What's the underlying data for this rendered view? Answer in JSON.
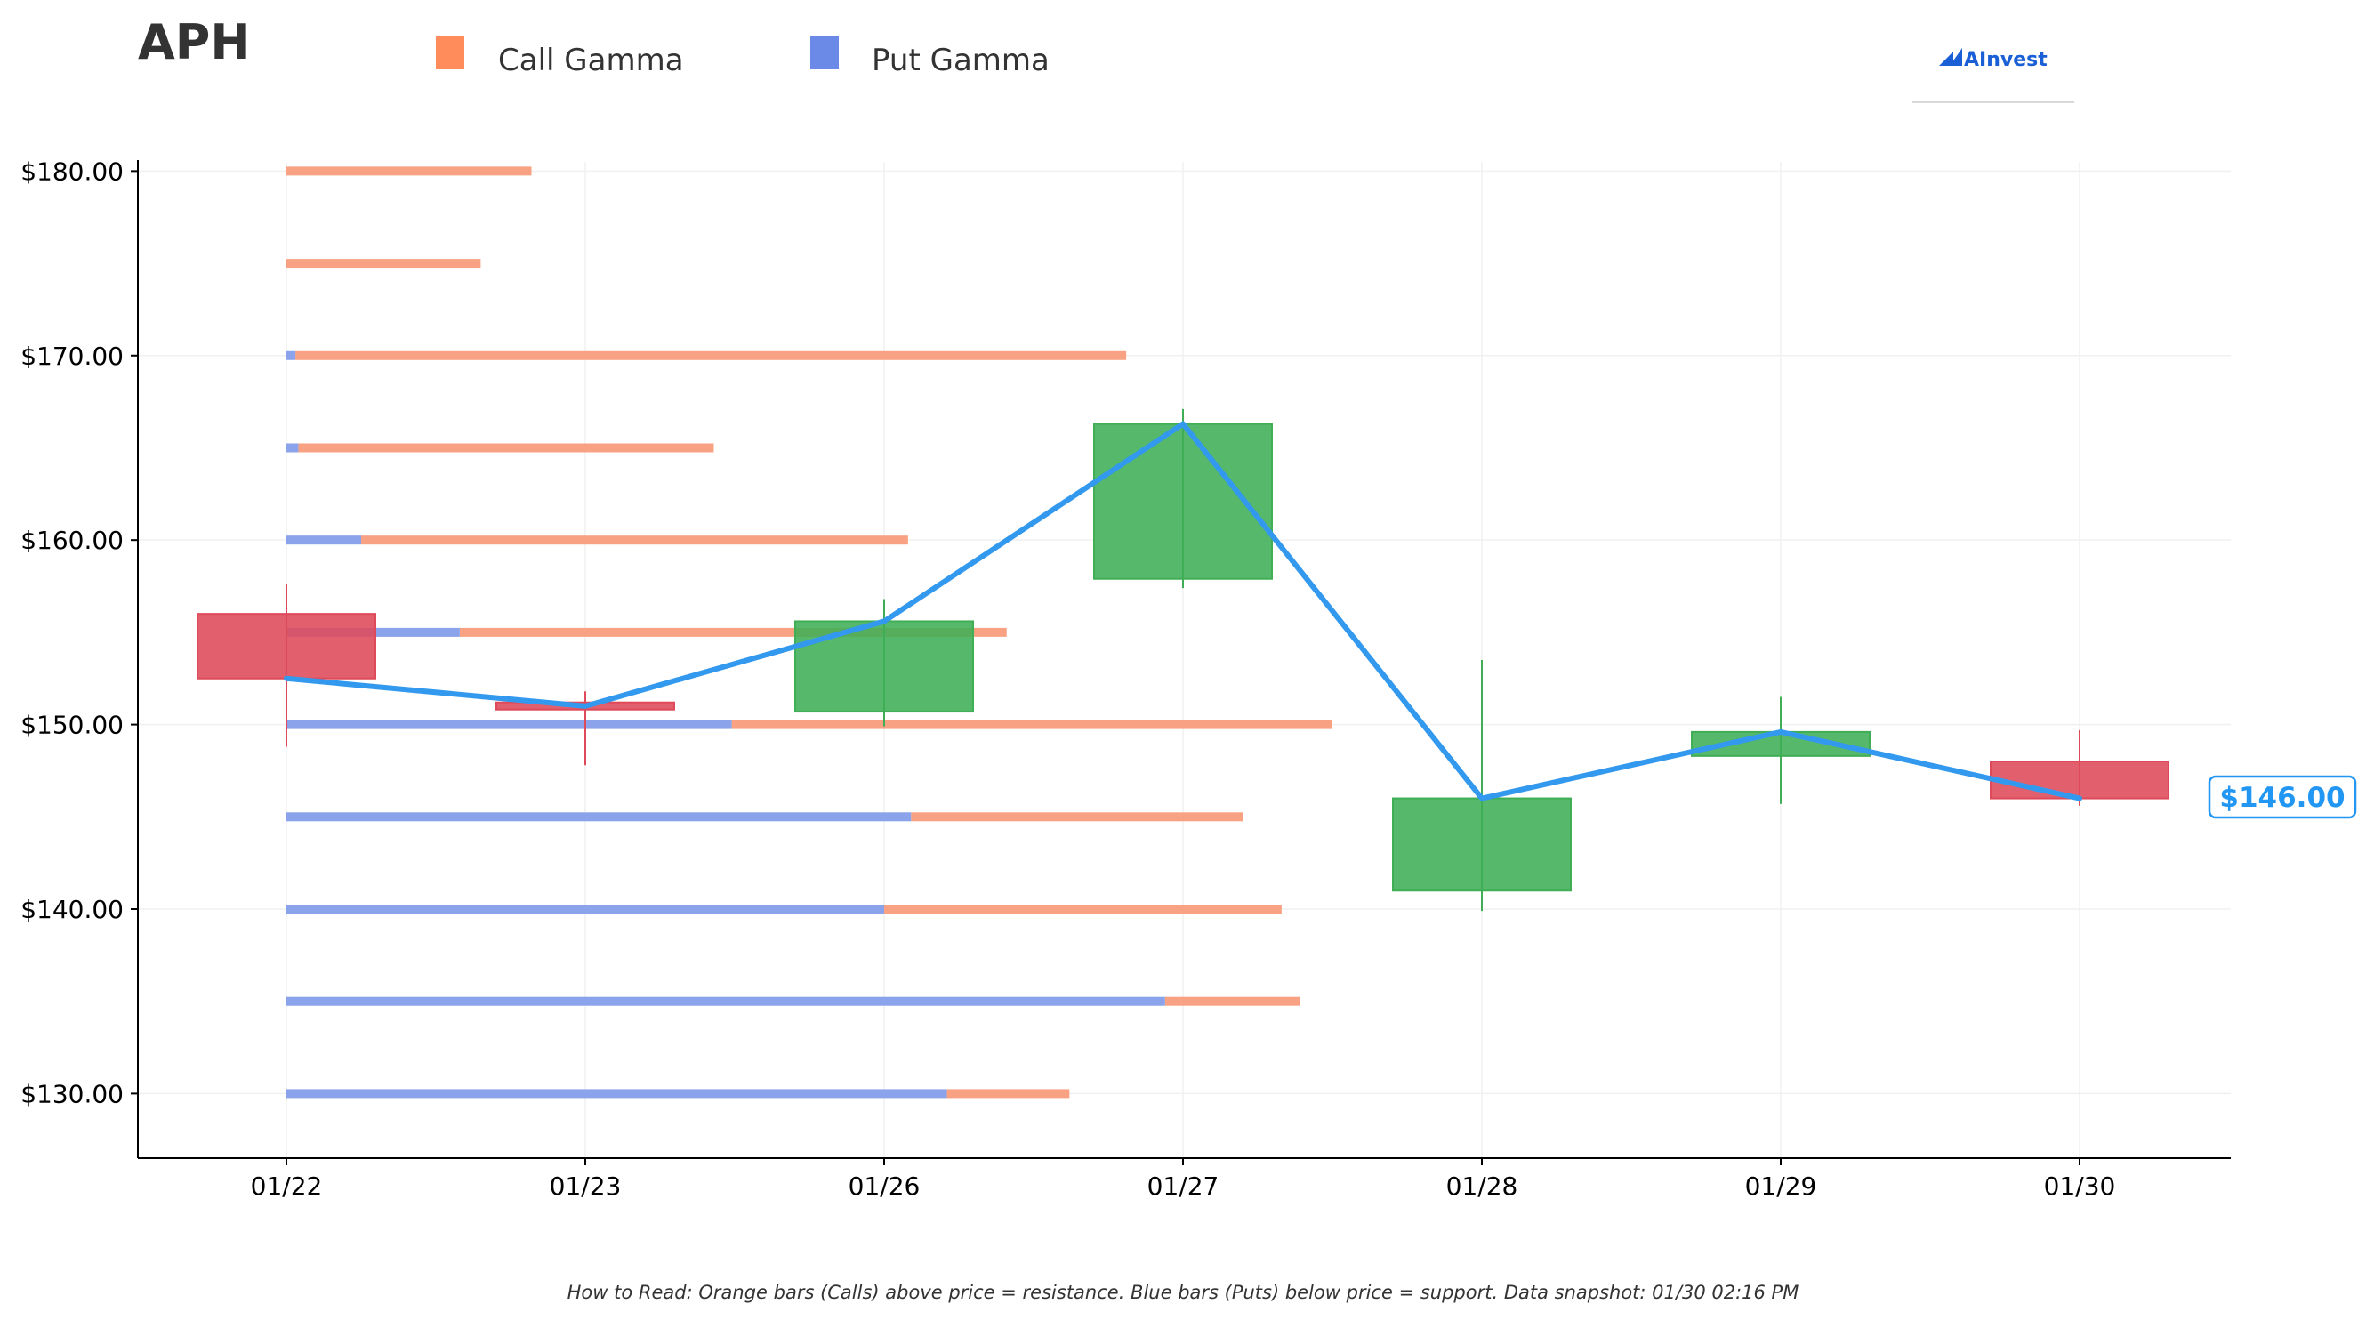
{
  "header": {
    "title": "APH",
    "legend": [
      {
        "label": "Call Gamma",
        "color": "#ff8c5a"
      },
      {
        "label": "Put Gamma",
        "color": "#6b89e6"
      }
    ],
    "logo": "AInvest"
  },
  "footer": {
    "note": "How to Read: Orange bars (Calls) above price = resistance. Blue bars (Puts) below price = support. Data snapshot: 01/30 02:16 PM"
  },
  "price_label": "$146.00",
  "colors": {
    "call": "#f8a283",
    "put": "#8aa3ea",
    "up": "#3fae55",
    "down": "#de4a5a",
    "line": "#3399ee"
  },
  "chart_data": {
    "type": "candlestick",
    "categories": [
      "01/22",
      "01/23",
      "01/26",
      "01/27",
      "01/28",
      "01/29",
      "01/30"
    ],
    "ylim": [
      126.5,
      180.5
    ],
    "yticks": [
      130,
      140,
      150,
      160,
      170,
      180
    ],
    "ytick_labels": [
      "$130.00",
      "$140.00",
      "$150.00",
      "$160.00",
      "$170.00",
      "$180.00"
    ],
    "grid": true,
    "candles": [
      {
        "open": 156.0,
        "high": 157.6,
        "low": 148.8,
        "close": 152.5
      },
      {
        "open": 151.2,
        "high": 151.8,
        "low": 147.8,
        "close": 151.0
      },
      {
        "open": 150.7,
        "high": 156.8,
        "low": 149.9,
        "close": 155.6
      },
      {
        "open": 157.9,
        "high": 167.1,
        "low": 157.4,
        "close": 166.3
      },
      {
        "open": 141.0,
        "high": 153.5,
        "low": 139.9,
        "close": 146.0
      },
      {
        "open": 148.3,
        "high": 151.5,
        "low": 145.7,
        "close": 149.6
      },
      {
        "open": 148.0,
        "high": 149.7,
        "low": 145.6,
        "close": 146.0
      }
    ],
    "close_line": [
      152.5,
      151.0,
      155.6,
      166.3,
      146.0,
      149.6,
      146.0
    ],
    "gamma_index_scale": "bar ends expressed in category-index units starting at 01/22",
    "gamma": [
      {
        "strike": 180,
        "put_end": 0.0,
        "call_end": 0.82
      },
      {
        "strike": 175,
        "put_end": 0.0,
        "call_end": 0.65
      },
      {
        "strike": 170,
        "put_end": 0.03,
        "call_end": 2.81
      },
      {
        "strike": 165,
        "put_end": 0.04,
        "call_end": 1.43
      },
      {
        "strike": 160,
        "put_end": 0.25,
        "call_end": 2.08
      },
      {
        "strike": 155,
        "put_end": 0.58,
        "call_end": 2.41
      },
      {
        "strike": 150,
        "put_end": 1.49,
        "call_end": 3.5
      },
      {
        "strike": 145,
        "put_end": 2.09,
        "call_end": 3.2
      },
      {
        "strike": 140,
        "put_end": 2.0,
        "call_end": 3.33
      },
      {
        "strike": 135,
        "put_end": 2.94,
        "call_end": 3.39
      },
      {
        "strike": 130,
        "put_end": 2.21,
        "call_end": 2.62
      }
    ]
  }
}
